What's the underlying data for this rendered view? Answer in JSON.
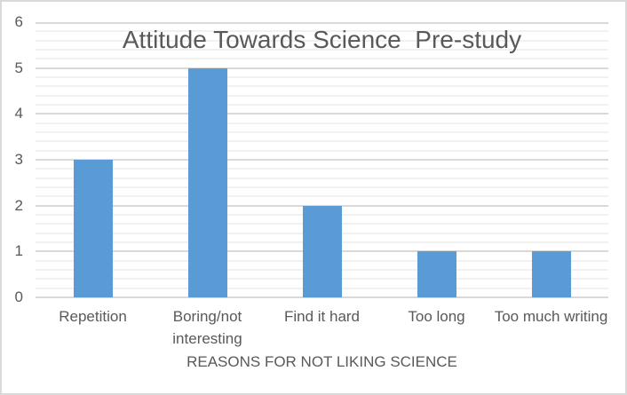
{
  "chart_data": {
    "type": "bar",
    "title": "Attitude Towards Science  Pre-study",
    "categories": [
      "Repetition",
      "Boring/not interesting",
      "Find it hard",
      "Too long",
      "Too much writing"
    ],
    "values": [
      3,
      5,
      2,
      1,
      1
    ],
    "xlabel": "REASONS FOR NOT LIKING SCIENCE",
    "ylabel": "",
    "ylim": [
      0,
      6
    ],
    "y_major_ticks": [
      0,
      1,
      2,
      3,
      4,
      5,
      6
    ],
    "y_minor_unit": 0.2,
    "grid": "horizontal major and minor gridlines",
    "legend": "none",
    "colors": {
      "bar": "#5B9BD5",
      "major_gridline": "#D9D9D9",
      "minor_gridline": "#F1F1F1",
      "axis_line": "#D9D9D9",
      "text": "#595959",
      "background": "#FFFFFF",
      "border": "#D9D9D9"
    }
  }
}
